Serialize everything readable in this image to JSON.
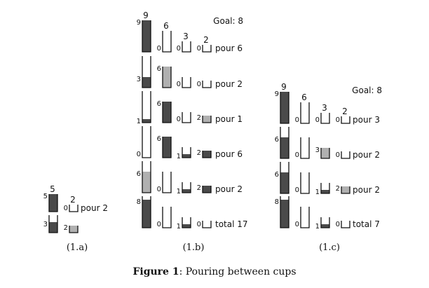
{
  "caption": {
    "label": "Figure 1",
    "text": ": Pouring between cups"
  },
  "colors": {
    "dark": "#4a4a4a",
    "light": "#b0b0b0",
    "outline": "#111111"
  },
  "panels": [
    {
      "id": "1.a",
      "label": "(1.a)",
      "goal": null,
      "capacities": [
        5,
        2
      ],
      "rows": [
        {
          "levels": [
            5,
            0
          ],
          "fill": [
            "dark",
            "light"
          ],
          "note": "pour 2"
        },
        {
          "levels": [
            3,
            2
          ],
          "fill": [
            "dark",
            "light"
          ],
          "note": ""
        }
      ]
    },
    {
      "id": "1.b",
      "label": "(1.b)",
      "goal": "Goal: 8",
      "capacities": [
        9,
        6,
        3,
        2
      ],
      "rows": [
        {
          "levels": [
            9,
            0,
            0,
            0
          ],
          "fill": [
            "dark",
            "light",
            "light",
            "light"
          ],
          "note": "pour 6"
        },
        {
          "levels": [
            3,
            6,
            0,
            0
          ],
          "fill": [
            "dark",
            "light",
            "light",
            "light"
          ],
          "note": "pour 2"
        },
        {
          "levels": [
            1,
            6,
            0,
            2
          ],
          "fill": [
            "dark",
            "dark",
            "light",
            "light"
          ],
          "note": "pour 1"
        },
        {
          "levels": [
            0,
            6,
            1,
            2
          ],
          "fill": [
            "dark",
            "dark",
            "dark",
            "dark"
          ],
          "note": "pour 6"
        },
        {
          "levels": [
            6,
            0,
            1,
            2
          ],
          "fill": [
            "light",
            "light",
            "dark",
            "dark"
          ],
          "note": "pour 2"
        },
        {
          "levels": [
            8,
            0,
            1,
            0
          ],
          "fill": [
            "dark",
            "light",
            "dark",
            "light"
          ],
          "note": "total 17"
        }
      ]
    },
    {
      "id": "1.c",
      "label": "(1.c)",
      "goal": "Goal: 8",
      "capacities": [
        9,
        6,
        3,
        2
      ],
      "rows": [
        {
          "levels": [
            9,
            0,
            0,
            0
          ],
          "fill": [
            "dark",
            "light",
            "light",
            "light"
          ],
          "note": "pour 3"
        },
        {
          "levels": [
            6,
            0,
            3,
            0
          ],
          "fill": [
            "dark",
            "light",
            "light",
            "light"
          ],
          "note": "pour 2"
        },
        {
          "levels": [
            6,
            0,
            1,
            2
          ],
          "fill": [
            "dark",
            "light",
            "dark",
            "light"
          ],
          "note": "pour 2"
        },
        {
          "levels": [
            8,
            0,
            1,
            0
          ],
          "fill": [
            "dark",
            "light",
            "dark",
            "light"
          ],
          "note": "total 7"
        }
      ]
    }
  ]
}
